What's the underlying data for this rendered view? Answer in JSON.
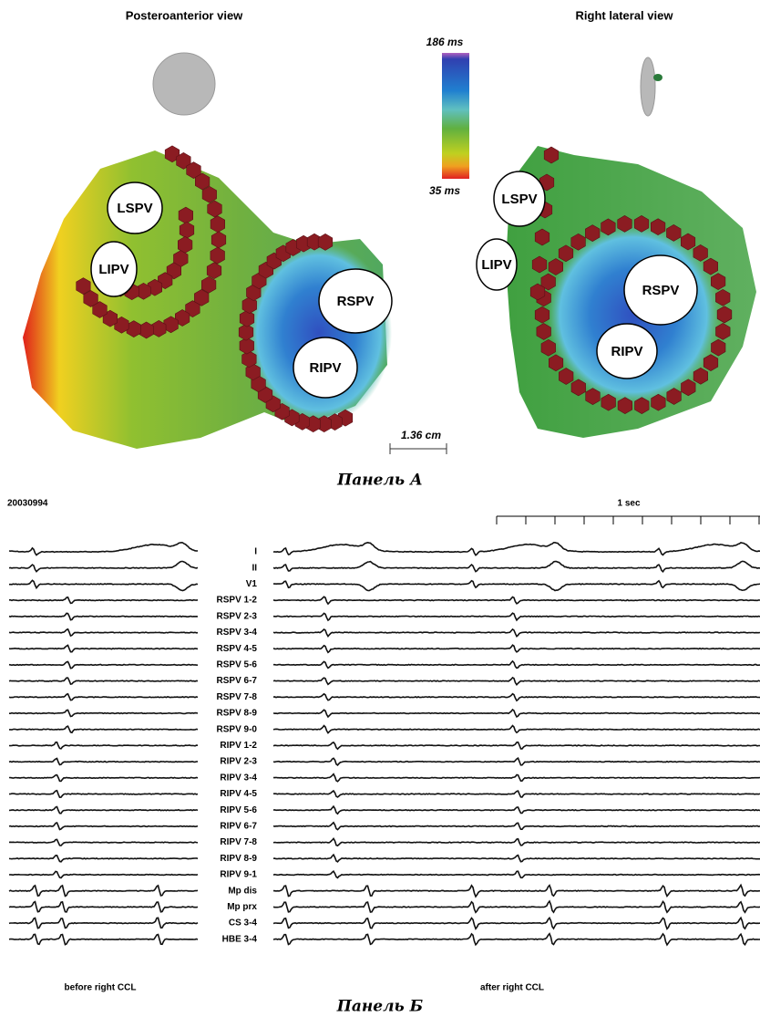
{
  "panel_a": {
    "views": [
      {
        "title": "Posteroanterior view",
        "veins": [
          "LSPV",
          "LIPV",
          "RSPV",
          "RIPV"
        ]
      },
      {
        "title": "Right lateral view",
        "veins": [
          "LSPV",
          "LIPV",
          "RSPV",
          "RIPV"
        ]
      }
    ],
    "colorbar": {
      "max": "186 ms",
      "min": "35 ms"
    },
    "scale_bar": "1.36 cm",
    "caption": "Панель А"
  },
  "panel_b": {
    "record_id": "20030994",
    "time_scale": "1 sec",
    "channels": [
      "I",
      "II",
      "V1",
      "RSPV 1-2",
      "RSPV 2-3",
      "RSPV 3-4",
      "RSPV 4-5",
      "RSPV 5-6",
      "RSPV 6-7",
      "RSPV 7-8",
      "RSPV 8-9",
      "RSPV 9-0",
      "RIPV 1-2",
      "RIPV 2-3",
      "RIPV 3-4",
      "RIPV 4-5",
      "RIPV 5-6",
      "RIPV 6-7",
      "RIPV 7-8",
      "RIPV 8-9",
      "RIPV 9-1",
      "Mp dis",
      "Mp prx",
      "CS 3-4",
      "HBE 3-4"
    ],
    "segments": [
      "before right CCL",
      "after right CCL"
    ],
    "caption": "Панель Б"
  }
}
